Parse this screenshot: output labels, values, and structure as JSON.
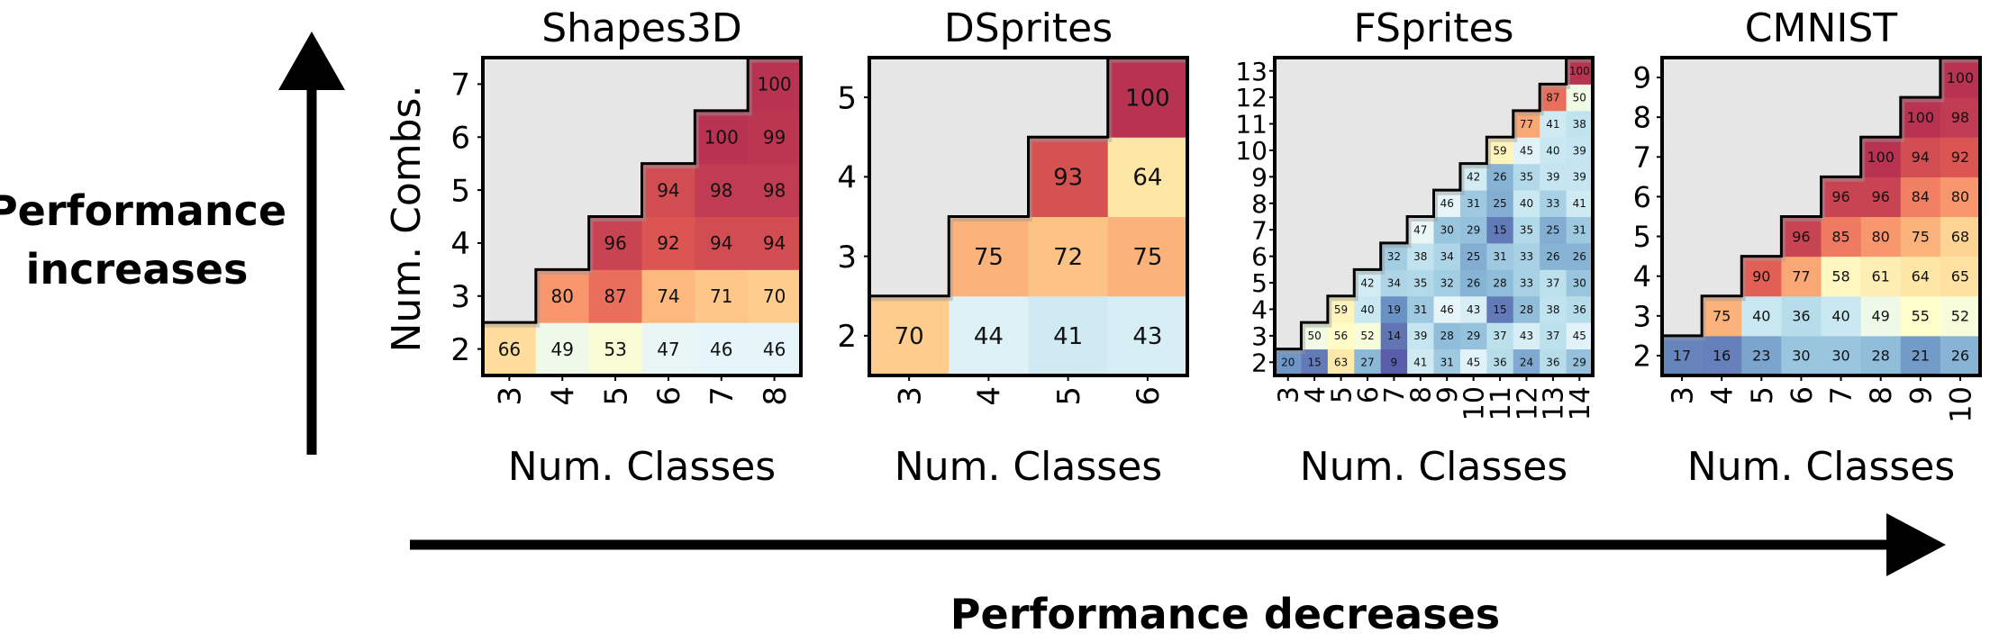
{
  "left_label": {
    "line1": "Performance",
    "line2": "increases"
  },
  "bottom_label": "Performance decreases",
  "y_axis_label": "Num. Combs.",
  "chart_data": [
    {
      "type": "heatmap",
      "title": "Shapes3D",
      "xlabel": "Num. Classes",
      "ylabel": "Num. Combs.",
      "x_ticks": [
        "3",
        "4",
        "5",
        "6",
        "7",
        "8"
      ],
      "y_ticks": [
        "2",
        "3",
        "4",
        "5",
        "6",
        "7"
      ],
      "colormap": "RdYlBu_r",
      "vmin": 10,
      "vmax": 100,
      "values": [
        [
          66,
          49,
          53,
          47,
          46,
          46
        ],
        [
          null,
          80,
          87,
          74,
          71,
          70
        ],
        [
          null,
          null,
          96,
          92,
          94,
          94
        ],
        [
          null,
          null,
          null,
          94,
          98,
          98
        ],
        [
          null,
          null,
          null,
          null,
          100,
          99
        ],
        [
          null,
          null,
          null,
          null,
          null,
          100
        ]
      ]
    },
    {
      "type": "heatmap",
      "title": "DSprites",
      "xlabel": "Num. Classes",
      "ylabel": "",
      "x_ticks": [
        "3",
        "4",
        "5",
        "6"
      ],
      "y_ticks": [
        "2",
        "3",
        "4",
        "5"
      ],
      "colormap": "RdYlBu_r",
      "vmin": 10,
      "vmax": 100,
      "values": [
        [
          70,
          44,
          41,
          43
        ],
        [
          null,
          75,
          72,
          75
        ],
        [
          null,
          null,
          93,
          64
        ],
        [
          null,
          null,
          null,
          100
        ]
      ]
    },
    {
      "type": "heatmap",
      "title": "FSprites",
      "xlabel": "Num. Classes",
      "ylabel": "",
      "x_ticks": [
        "3",
        "4",
        "5",
        "6",
        "7",
        "8",
        "9",
        "10",
        "11",
        "12",
        "13",
        "14"
      ],
      "y_ticks": [
        "2",
        "3",
        "4",
        "5",
        "6",
        "7",
        "8",
        "9",
        "10",
        "11",
        "12",
        "13"
      ],
      "colormap": "RdYlBu_r",
      "vmin": 10,
      "vmax": 100,
      "values": [
        [
          20,
          15,
          63,
          27,
          9,
          41,
          31,
          45,
          36,
          24,
          36,
          29
        ],
        [
          null,
          50,
          56,
          52,
          14,
          39,
          28,
          29,
          37,
          43,
          37,
          45
        ],
        [
          null,
          null,
          59,
          40,
          19,
          31,
          46,
          43,
          15,
          28,
          38,
          36
        ],
        [
          null,
          null,
          null,
          42,
          34,
          35,
          32,
          26,
          28,
          33,
          37,
          30
        ],
        [
          null,
          null,
          null,
          null,
          32,
          38,
          34,
          25,
          31,
          33,
          26,
          26
        ],
        [
          null,
          null,
          null,
          null,
          null,
          47,
          30,
          29,
          15,
          35,
          25,
          31
        ],
        [
          null,
          null,
          null,
          null,
          null,
          null,
          46,
          31,
          25,
          40,
          33,
          41
        ],
        [
          null,
          null,
          null,
          null,
          null,
          null,
          null,
          42,
          26,
          35,
          39,
          39
        ],
        [
          null,
          null,
          null,
          null,
          null,
          null,
          null,
          null,
          59,
          45,
          40,
          39
        ],
        [
          null,
          null,
          null,
          null,
          null,
          null,
          null,
          null,
          null,
          77,
          41,
          38
        ],
        [
          null,
          null,
          null,
          null,
          null,
          null,
          null,
          null,
          null,
          null,
          87,
          50
        ],
        [
          null,
          null,
          null,
          null,
          null,
          null,
          null,
          null,
          null,
          null,
          null,
          100
        ]
      ]
    },
    {
      "type": "heatmap",
      "title": "CMNIST",
      "xlabel": "Num. Classes",
      "ylabel": "",
      "x_ticks": [
        "3",
        "4",
        "5",
        "6",
        "7",
        "8",
        "9",
        "10"
      ],
      "y_ticks": [
        "2",
        "3",
        "4",
        "5",
        "6",
        "7",
        "8",
        "9"
      ],
      "colormap": "RdYlBu_r",
      "vmin": 10,
      "vmax": 100,
      "values": [
        [
          17,
          16,
          23,
          30,
          30,
          28,
          21,
          26
        ],
        [
          null,
          75,
          40,
          36,
          40,
          49,
          55,
          52
        ],
        [
          null,
          null,
          90,
          77,
          58,
          61,
          64,
          65
        ],
        [
          null,
          null,
          null,
          96,
          85,
          80,
          75,
          68
        ],
        [
          null,
          null,
          null,
          null,
          96,
          96,
          84,
          80
        ],
        [
          null,
          null,
          null,
          null,
          null,
          100,
          94,
          92
        ],
        [
          null,
          null,
          null,
          null,
          null,
          null,
          100,
          98
        ],
        [
          null,
          null,
          null,
          null,
          null,
          null,
          null,
          100
        ]
      ]
    }
  ]
}
